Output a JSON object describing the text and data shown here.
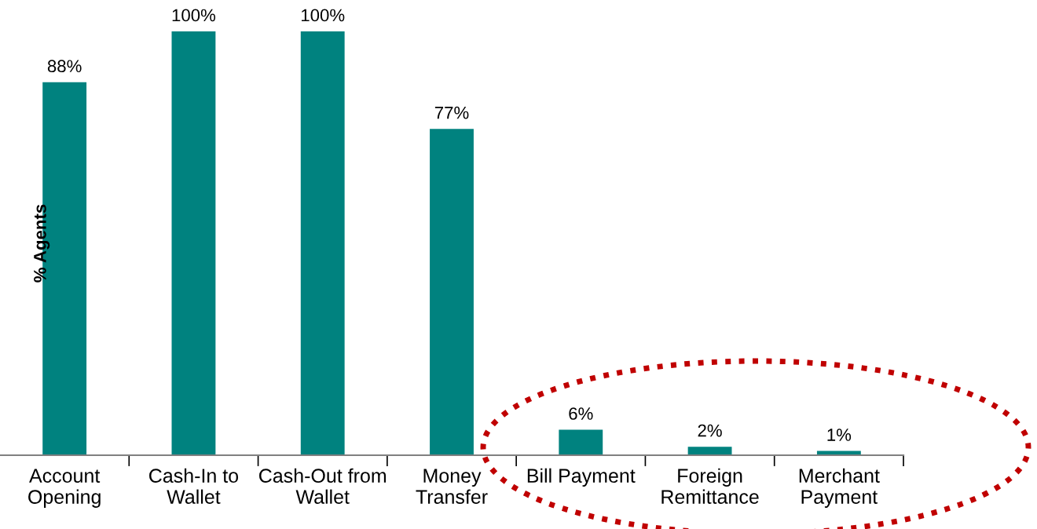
{
  "chart_data": {
    "type": "bar",
    "ylabel": "% Agents",
    "categories": [
      "Account\nOpening",
      "Cash-In to\nWallet",
      "Cash-Out from\nWallet",
      "Money\nTransfer",
      "Bill Payment",
      "Foreign\nRemittance",
      "Merchant\nPayment"
    ],
    "values": [
      88,
      100,
      100,
      77,
      6,
      2,
      1
    ],
    "value_labels": [
      "88%",
      "100%",
      "100%",
      "77%",
      "6%",
      "2%",
      "1%"
    ],
    "color": "#00827f",
    "grid": false,
    "legend": false
  }
}
